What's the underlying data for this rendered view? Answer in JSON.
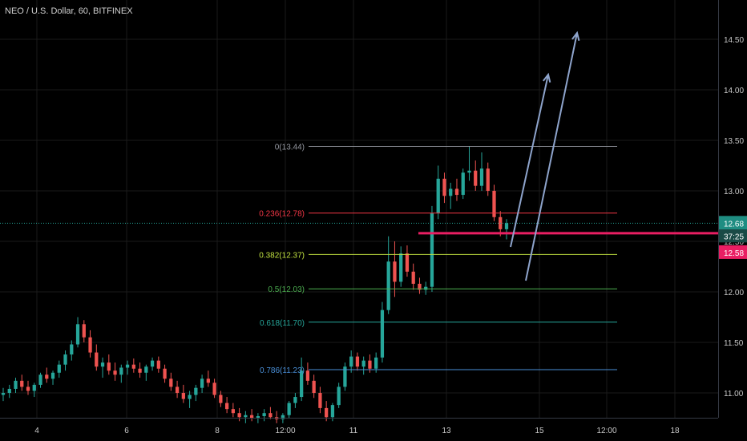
{
  "symbol_title": "NEO / U.S. Dollar, 60, BITFINEX",
  "chart_data": {
    "type": "candlestick",
    "x_ticks": [
      "4",
      "6",
      "8",
      "12:00",
      "11",
      "13",
      "15",
      "12:00",
      "18"
    ],
    "y_ticks": [
      "11.00",
      "11.50",
      "12.00",
      "12.50",
      "13.00",
      "13.50",
      "14.00",
      "14.50"
    ],
    "ylim": [
      10.7,
      14.75
    ],
    "fib_levels": [
      {
        "label": "0(13.44)",
        "value": 13.44,
        "color": "#9598a1"
      },
      {
        "label": "0.236(12.78)",
        "value": 12.78,
        "color": "#f23645"
      },
      {
        "label": "0.382(12.37)",
        "value": 12.37,
        "color": "#c0e040"
      },
      {
        "label": "0.5(12.03)",
        "value": 12.03,
        "color": "#4caf50"
      },
      {
        "label": "0.618(11.70)",
        "value": 11.7,
        "color": "#26a69a"
      },
      {
        "label": "0.786(11.23)",
        "value": 11.23,
        "color": "#4a90d9"
      }
    ],
    "support_line": {
      "value": 12.58,
      "color": "#e91e63"
    },
    "current_price": {
      "label": "12.68",
      "value": 12.68
    },
    "countdown": "37:25",
    "support_label": "12.58",
    "colors": {
      "up": "#26a69a",
      "down": "#ef5350",
      "arrow": "#8ea4cc",
      "grid": "#1a1a1a",
      "text": "#c8c8c8"
    },
    "candles": [
      {
        "o": 10.98,
        "h": 11.05,
        "l": 10.92,
        "c": 11.0
      },
      {
        "o": 11.0,
        "h": 11.08,
        "l": 10.95,
        "c": 11.04
      },
      {
        "o": 11.04,
        "h": 11.15,
        "l": 11.0,
        "c": 11.12
      },
      {
        "o": 11.12,
        "h": 11.18,
        "l": 11.02,
        "c": 11.06
      },
      {
        "o": 11.06,
        "h": 11.12,
        "l": 10.98,
        "c": 11.02
      },
      {
        "o": 11.02,
        "h": 11.1,
        "l": 10.96,
        "c": 11.08
      },
      {
        "o": 11.08,
        "h": 11.2,
        "l": 11.05,
        "c": 11.18
      },
      {
        "o": 11.18,
        "h": 11.25,
        "l": 11.1,
        "c": 11.14
      },
      {
        "o": 11.14,
        "h": 11.22,
        "l": 11.08,
        "c": 11.2
      },
      {
        "o": 11.2,
        "h": 11.32,
        "l": 11.15,
        "c": 11.28
      },
      {
        "o": 11.28,
        "h": 11.42,
        "l": 11.22,
        "c": 11.38
      },
      {
        "o": 11.38,
        "h": 11.52,
        "l": 11.32,
        "c": 11.48
      },
      {
        "o": 11.48,
        "h": 11.75,
        "l": 11.45,
        "c": 11.68
      },
      {
        "o": 11.68,
        "h": 11.72,
        "l": 11.5,
        "c": 11.55
      },
      {
        "o": 11.55,
        "h": 11.62,
        "l": 11.35,
        "c": 11.4
      },
      {
        "o": 11.4,
        "h": 11.48,
        "l": 11.22,
        "c": 11.26
      },
      {
        "o": 11.26,
        "h": 11.35,
        "l": 11.15,
        "c": 11.3
      },
      {
        "o": 11.3,
        "h": 11.38,
        "l": 11.18,
        "c": 11.22
      },
      {
        "o": 11.22,
        "h": 11.3,
        "l": 11.12,
        "c": 11.18
      },
      {
        "o": 11.18,
        "h": 11.28,
        "l": 11.1,
        "c": 11.25
      },
      {
        "o": 11.25,
        "h": 11.32,
        "l": 11.18,
        "c": 11.28
      },
      {
        "o": 11.28,
        "h": 11.34,
        "l": 11.2,
        "c": 11.24
      },
      {
        "o": 11.24,
        "h": 11.3,
        "l": 11.15,
        "c": 11.2
      },
      {
        "o": 11.2,
        "h": 11.28,
        "l": 11.12,
        "c": 11.26
      },
      {
        "o": 11.26,
        "h": 11.35,
        "l": 11.22,
        "c": 11.32
      },
      {
        "o": 11.32,
        "h": 11.36,
        "l": 11.2,
        "c": 11.24
      },
      {
        "o": 11.24,
        "h": 11.28,
        "l": 11.1,
        "c": 11.14
      },
      {
        "o": 11.14,
        "h": 11.2,
        "l": 11.02,
        "c": 11.06
      },
      {
        "o": 11.06,
        "h": 11.12,
        "l": 10.95,
        "c": 11.0
      },
      {
        "o": 11.0,
        "h": 11.08,
        "l": 10.9,
        "c": 10.94
      },
      {
        "o": 10.94,
        "h": 11.02,
        "l": 10.85,
        "c": 10.98
      },
      {
        "o": 10.98,
        "h": 11.08,
        "l": 10.92,
        "c": 11.05
      },
      {
        "o": 11.05,
        "h": 11.18,
        "l": 11.0,
        "c": 11.14
      },
      {
        "o": 11.14,
        "h": 11.22,
        "l": 11.06,
        "c": 11.1
      },
      {
        "o": 11.1,
        "h": 11.14,
        "l": 10.95,
        "c": 10.98
      },
      {
        "o": 10.98,
        "h": 11.02,
        "l": 10.86,
        "c": 10.9
      },
      {
        "o": 10.9,
        "h": 10.96,
        "l": 10.8,
        "c": 10.84
      },
      {
        "o": 10.84,
        "h": 10.9,
        "l": 10.76,
        "c": 10.8
      },
      {
        "o": 10.8,
        "h": 10.85,
        "l": 10.72,
        "c": 10.76
      },
      {
        "o": 10.76,
        "h": 10.82,
        "l": 10.7,
        "c": 10.78
      },
      {
        "o": 10.78,
        "h": 10.84,
        "l": 10.72,
        "c": 10.75
      },
      {
        "o": 10.75,
        "h": 10.8,
        "l": 10.7,
        "c": 10.77
      },
      {
        "o": 10.77,
        "h": 10.84,
        "l": 10.72,
        "c": 10.8
      },
      {
        "o": 10.8,
        "h": 10.86,
        "l": 10.74,
        "c": 10.76
      },
      {
        "o": 10.76,
        "h": 10.82,
        "l": 10.7,
        "c": 10.74
      },
      {
        "o": 10.74,
        "h": 10.8,
        "l": 10.7,
        "c": 10.78
      },
      {
        "o": 10.78,
        "h": 10.92,
        "l": 10.75,
        "c": 10.9
      },
      {
        "o": 10.9,
        "h": 11.0,
        "l": 10.85,
        "c": 10.96
      },
      {
        "o": 10.96,
        "h": 11.35,
        "l": 10.92,
        "c": 11.22
      },
      {
        "o": 11.22,
        "h": 11.3,
        "l": 11.08,
        "c": 11.12
      },
      {
        "o": 11.12,
        "h": 11.18,
        "l": 10.95,
        "c": 11.0
      },
      {
        "o": 11.0,
        "h": 11.06,
        "l": 10.8,
        "c": 10.85
      },
      {
        "o": 10.85,
        "h": 10.92,
        "l": 10.72,
        "c": 10.76
      },
      {
        "o": 10.76,
        "h": 10.9,
        "l": 10.72,
        "c": 10.88
      },
      {
        "o": 10.88,
        "h": 11.1,
        "l": 10.85,
        "c": 11.06
      },
      {
        "o": 11.06,
        "h": 11.3,
        "l": 11.02,
        "c": 11.26
      },
      {
        "o": 11.26,
        "h": 11.42,
        "l": 11.2,
        "c": 11.36
      },
      {
        "o": 11.36,
        "h": 11.4,
        "l": 11.22,
        "c": 11.26
      },
      {
        "o": 11.26,
        "h": 11.36,
        "l": 11.18,
        "c": 11.32
      },
      {
        "o": 11.32,
        "h": 11.38,
        "l": 11.2,
        "c": 11.24
      },
      {
        "o": 11.24,
        "h": 11.4,
        "l": 11.2,
        "c": 11.35
      },
      {
        "o": 11.35,
        "h": 11.9,
        "l": 11.3,
        "c": 11.82
      },
      {
        "o": 11.82,
        "h": 12.55,
        "l": 11.78,
        "c": 12.3
      },
      {
        "o": 12.3,
        "h": 12.5,
        "l": 11.95,
        "c": 12.1
      },
      {
        "o": 12.1,
        "h": 12.45,
        "l": 12.05,
        "c": 12.38
      },
      {
        "o": 12.38,
        "h": 12.46,
        "l": 12.15,
        "c": 12.2
      },
      {
        "o": 12.2,
        "h": 12.28,
        "l": 12.02,
        "c": 12.08
      },
      {
        "o": 12.08,
        "h": 12.14,
        "l": 11.98,
        "c": 12.02
      },
      {
        "o": 12.02,
        "h": 12.1,
        "l": 11.97,
        "c": 12.05
      },
      {
        "o": 12.05,
        "h": 12.85,
        "l": 12.0,
        "c": 12.78
      },
      {
        "o": 12.78,
        "h": 13.25,
        "l": 12.72,
        "c": 13.12
      },
      {
        "o": 13.12,
        "h": 13.18,
        "l": 12.88,
        "c": 12.95
      },
      {
        "o": 12.95,
        "h": 13.08,
        "l": 12.82,
        "c": 13.02
      },
      {
        "o": 13.02,
        "h": 13.12,
        "l": 12.9,
        "c": 12.96
      },
      {
        "o": 12.96,
        "h": 13.22,
        "l": 12.92,
        "c": 13.18
      },
      {
        "o": 13.18,
        "h": 13.44,
        "l": 13.1,
        "c": 13.2
      },
      {
        "o": 13.2,
        "h": 13.3,
        "l": 13.0,
        "c": 13.05
      },
      {
        "o": 13.05,
        "h": 13.38,
        "l": 13.0,
        "c": 13.22
      },
      {
        "o": 13.22,
        "h": 13.28,
        "l": 12.95,
        "c": 13.0
      },
      {
        "o": 13.0,
        "h": 13.06,
        "l": 12.7,
        "c": 12.74
      },
      {
        "o": 12.74,
        "h": 12.8,
        "l": 12.55,
        "c": 12.62
      },
      {
        "o": 12.62,
        "h": 12.72,
        "l": 12.52,
        "c": 12.68
      }
    ]
  }
}
